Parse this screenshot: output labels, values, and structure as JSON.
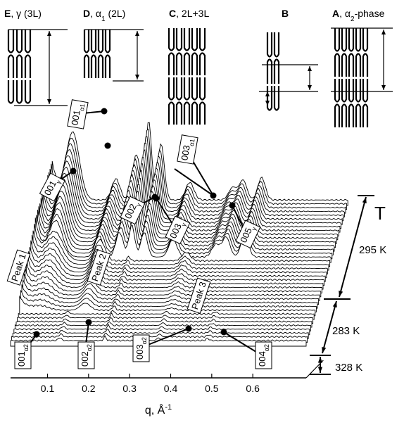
{
  "chart_data": {
    "type": "waterfall",
    "xlabel": "q, Å",
    "xlabel_sup": "-1",
    "xlim": [
      0.01,
      0.73
    ],
    "xticks": [
      0.1,
      0.2,
      0.3,
      0.4,
      0.5,
      0.6
    ],
    "annotations": [
      {
        "text": "001",
        "sub": "α1"
      },
      {
        "text": "001",
        "sub": "γ"
      },
      {
        "text": "002",
        "sub": "γ"
      },
      {
        "text": "003",
        "sub": "α1"
      },
      {
        "text": "003",
        "sub": "γ"
      },
      {
        "text": "005",
        "sub": "γ"
      },
      {
        "text": "001",
        "sub": "α2"
      },
      {
        "text": "002",
        "sub": "α2"
      },
      {
        "text": "003",
        "sub": "α2"
      },
      {
        "text": "004",
        "sub": "α2"
      }
    ],
    "peak_labels": [
      "Peak 1",
      "Peak 2",
      "Peak 3"
    ],
    "temperature_axis": {
      "label": "T",
      "ranges": [
        "295 K",
        "283 K",
        "328 K"
      ]
    }
  },
  "panels": [
    {
      "letter": "E",
      "text": ", γ (3L)"
    },
    {
      "letter": "D",
      "text": ", α",
      "sub": "1",
      "rest": " (2L)"
    },
    {
      "letter": "C",
      "text": ", 2L+3L"
    },
    {
      "letter": "B"
    },
    {
      "letter": "A",
      "text": ", α",
      "sub": "2",
      "rest": "-phase"
    }
  ]
}
